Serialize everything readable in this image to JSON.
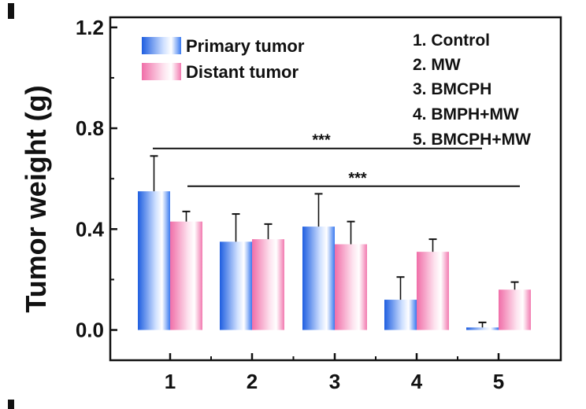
{
  "chart_data": {
    "type": "bar",
    "categories": [
      "1",
      "2",
      "3",
      "4",
      "5"
    ],
    "ylabel": "Tumor weight (g)",
    "xlabel": "",
    "ylim": [
      -0.12,
      1.24
    ],
    "yticks": [
      0.0,
      0.4,
      0.8,
      1.2
    ],
    "ytick_labels": [
      "0.0",
      "0.4",
      "0.8",
      "1.2"
    ],
    "series": [
      {
        "name": "Primary tumor",
        "values": [
          0.55,
          0.35,
          0.41,
          0.12,
          0.01
        ],
        "errors": [
          0.14,
          0.11,
          0.13,
          0.09,
          0.02
        ],
        "color": "#2f6fe0"
      },
      {
        "name": "Distant tumor",
        "values": [
          0.43,
          0.36,
          0.34,
          0.31,
          0.16
        ],
        "errors": [
          0.04,
          0.06,
          0.09,
          0.05,
          0.03
        ],
        "color": "#f06ea8"
      }
    ],
    "group_legend": [
      "1. Control",
      "2. MW",
      "3. BMCPH",
      "4. BMPH+MW",
      "5. BMCPH+MW"
    ],
    "annotations": [
      {
        "text": "***",
        "from_group": "1",
        "to_group": "5",
        "y": 0.72
      },
      {
        "text": "***",
        "from_group": "1",
        "to_group": "5",
        "y": 0.57
      }
    ],
    "legend_position": "top-left",
    "grid": false
  }
}
